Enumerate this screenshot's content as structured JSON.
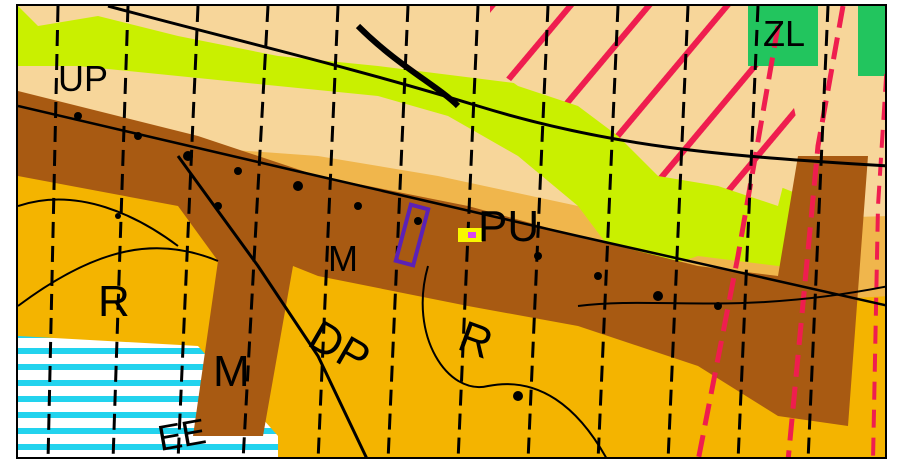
{
  "map": {
    "colors": {
      "agricultural": "#f4b400",
      "residential_light": "#f7d69a",
      "residential_mid": "#f0b64c",
      "road_zone": "#a85a12",
      "green": "#c9f000",
      "forest": "#22c55e",
      "water": "#22d3ee",
      "red_hatch": "#ef1d4f",
      "marker": "#5b21b6",
      "highlight": "#f8f800"
    },
    "labels": {
      "r_left": "R",
      "m_vertical": "M",
      "dp": "DP",
      "r_center": "R",
      "m_road": "M",
      "pu": "PU",
      "ee": "EE",
      "zl": "ZL",
      "up": "UP"
    }
  }
}
